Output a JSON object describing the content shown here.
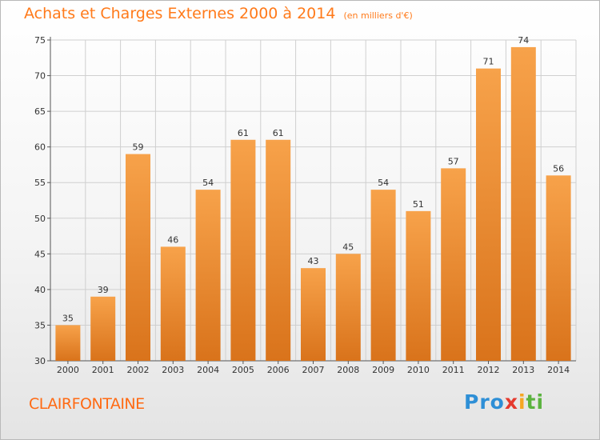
{
  "title": "Achats et Charges Externes 2000 à 2014",
  "unit": "(en milliers d'€)",
  "place": "CLAIRFONTAINE",
  "logo": {
    "p1": "Pro",
    "p2": "x",
    "p3": "i",
    "p4": "ti"
  },
  "colors": {
    "bar_top": "#f7a24a",
    "bar_bottom": "#d9731b",
    "title": "#ff7a1a",
    "grid": "#cfcfcf"
  },
  "chart_data": {
    "type": "bar",
    "categories": [
      "2000",
      "2001",
      "2002",
      "2003",
      "2004",
      "2005",
      "2006",
      "2007",
      "2008",
      "2009",
      "2010",
      "2011",
      "2012",
      "2013",
      "2014"
    ],
    "values": [
      35,
      39,
      59,
      46,
      54,
      61,
      61,
      43,
      45,
      54,
      51,
      57,
      71,
      74,
      56
    ],
    "ylim": [
      30,
      75
    ],
    "yticks": [
      30,
      35,
      40,
      45,
      50,
      55,
      60,
      65,
      70,
      75
    ],
    "grid": true
  }
}
